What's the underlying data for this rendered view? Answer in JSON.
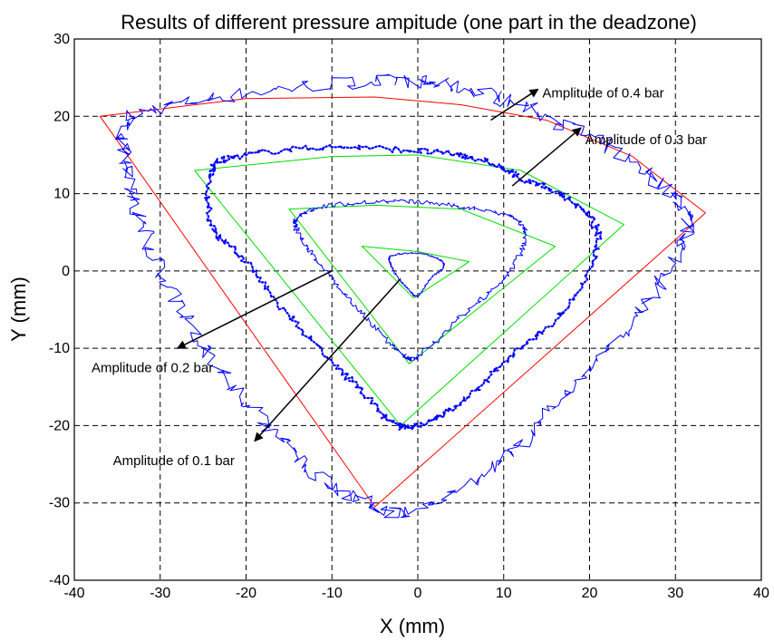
{
  "chart_data": {
    "type": "line",
    "title": "Results of different pressure ampitude (one part in the deadzone)",
    "xlabel": "X (mm)",
    "ylabel": "Y (mm)",
    "xlim": [
      -40,
      40
    ],
    "ylim": [
      -40,
      30
    ],
    "xticks": [
      -40,
      -30,
      -20,
      -10,
      0,
      10,
      20,
      30,
      40
    ],
    "yticks": [
      -40,
      -30,
      -20,
      -10,
      0,
      10,
      20,
      30
    ],
    "grid": true,
    "colors": {
      "reference_04": "#ff0000",
      "reference": "#00dd00",
      "measured": "#0000ff"
    },
    "series": [
      {
        "color": "red",
        "style": "solid",
        "closed": true,
        "points": [
          [
            -37,
            20
          ],
          [
            -20,
            22.3
          ],
          [
            -5,
            22.5
          ],
          [
            5,
            21.5
          ],
          [
            15,
            19.5
          ],
          [
            25,
            14.8
          ],
          [
            33.5,
            7.5
          ],
          [
            -5,
            -30.5
          ]
        ]
      },
      {
        "color": "green",
        "style": "solid",
        "closed": true,
        "points": [
          [
            -26,
            13
          ],
          [
            -10,
            14.8
          ],
          [
            0,
            15
          ],
          [
            12,
            13
          ],
          [
            24,
            6
          ],
          [
            -2,
            -20
          ]
        ]
      },
      {
        "color": "green",
        "style": "solid",
        "closed": true,
        "points": [
          [
            -15,
            8
          ],
          [
            -5,
            8.5
          ],
          [
            5,
            8
          ],
          [
            16,
            3.2
          ],
          [
            -1,
            -12
          ]
        ]
      },
      {
        "color": "green",
        "style": "solid",
        "closed": true,
        "points": [
          [
            -6.5,
            3.2
          ],
          [
            0,
            2.5
          ],
          [
            6,
            1.2
          ],
          [
            -0.5,
            -3.5
          ]
        ]
      },
      {
        "color": "blue",
        "style": "solid",
        "closed": true,
        "jitter": 0.9,
        "points": [
          [
            -33,
            20
          ],
          [
            -20,
            23
          ],
          [
            -5,
            24.5
          ],
          [
            3,
            24
          ],
          [
            12,
            21.5
          ],
          [
            22,
            16
          ],
          [
            30,
            9.5
          ],
          [
            31,
            4
          ],
          [
            26,
            -5
          ],
          [
            18,
            -15
          ],
          [
            10,
            -24
          ],
          [
            0,
            -31
          ],
          [
            -8,
            -29
          ],
          [
            -15,
            -23
          ],
          [
            -22,
            -14
          ],
          [
            -28,
            -4
          ],
          [
            -32,
            6
          ],
          [
            -34,
            14
          ]
        ]
      },
      {
        "color": "blue",
        "style": "dotted",
        "closed": true,
        "jitter": 0.4,
        "points": [
          [
            -24,
            13
          ],
          [
            -20,
            15
          ],
          [
            -10,
            16
          ],
          [
            0,
            15.5
          ],
          [
            7,
            14.5
          ],
          [
            12,
            12
          ],
          [
            18,
            9
          ],
          [
            21,
            4
          ],
          [
            18,
            -4
          ],
          [
            12,
            -10
          ],
          [
            5,
            -17
          ],
          [
            0,
            -20
          ],
          [
            -3,
            -19.5
          ],
          [
            -8,
            -14
          ],
          [
            -14,
            -7
          ],
          [
            -20,
            1
          ],
          [
            -24,
            6
          ]
        ]
      },
      {
        "color": "blue",
        "style": "solid",
        "closed": true,
        "jitter": 0.3,
        "points": [
          [
            -14,
            7
          ],
          [
            -10,
            8.5
          ],
          [
            -2,
            9
          ],
          [
            5,
            8.3
          ],
          [
            11,
            7
          ],
          [
            12.5,
            4
          ],
          [
            10,
            -1
          ],
          [
            5,
            -6
          ],
          [
            0,
            -11
          ],
          [
            -2,
            -10.5
          ],
          [
            -6,
            -6
          ],
          [
            -10,
            -1
          ],
          [
            -13.5,
            4
          ]
        ]
      },
      {
        "color": "blue",
        "style": "solid",
        "closed": true,
        "jitter": 0.1,
        "points": [
          [
            -3,
            2
          ],
          [
            0,
            2.3
          ],
          [
            2.5,
            1.5
          ],
          [
            3,
            0.5
          ],
          [
            1.5,
            -1
          ],
          [
            0,
            -3.2
          ],
          [
            -1,
            -2.5
          ],
          [
            -2.5,
            -0.5
          ],
          [
            -3.2,
            1
          ]
        ]
      }
    ],
    "annotations": [
      {
        "text": "Amplitude of 0.4 bar",
        "arrow_from": [
          8.5,
          19.5
        ],
        "arrow_to": [
          14,
          23.5
        ],
        "label_at": [
          14.5,
          23
        ]
      },
      {
        "text": "Amplitude of 0.3 bar",
        "arrow_from": [
          11,
          11
        ],
        "arrow_to": [
          19,
          18.5
        ],
        "label_at": [
          19.5,
          17
        ]
      },
      {
        "text": "Amplitude of 0.2 bar",
        "arrow_from": [
          -10,
          0
        ],
        "arrow_to": [
          -28,
          -10
        ],
        "label_at": [
          -38,
          -12.5
        ]
      },
      {
        "text": "Amplitude of 0.1 bar",
        "arrow_from": [
          -2,
          -1
        ],
        "arrow_to": [
          -19,
          -22
        ],
        "label_at": [
          -35.5,
          -24.5
        ]
      }
    ]
  }
}
